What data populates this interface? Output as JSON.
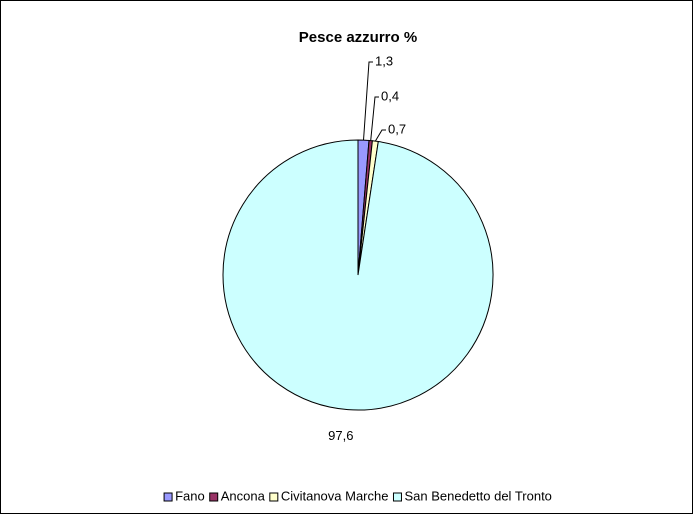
{
  "chart_data": {
    "type": "pie",
    "title": "Pesce azzurro %",
    "categories": [
      "Fano",
      "Ancona",
      "Civitanova Marche",
      "San Benedetto del Tronto"
    ],
    "values": [
      1.3,
      0.4,
      0.7,
      97.6
    ],
    "value_labels": [
      "1,3",
      "0,4",
      "0,7",
      "97,6"
    ],
    "colors": [
      "#9999ff",
      "#993366",
      "#ffffcc",
      "#ccffff"
    ],
    "legend": "bottom"
  }
}
